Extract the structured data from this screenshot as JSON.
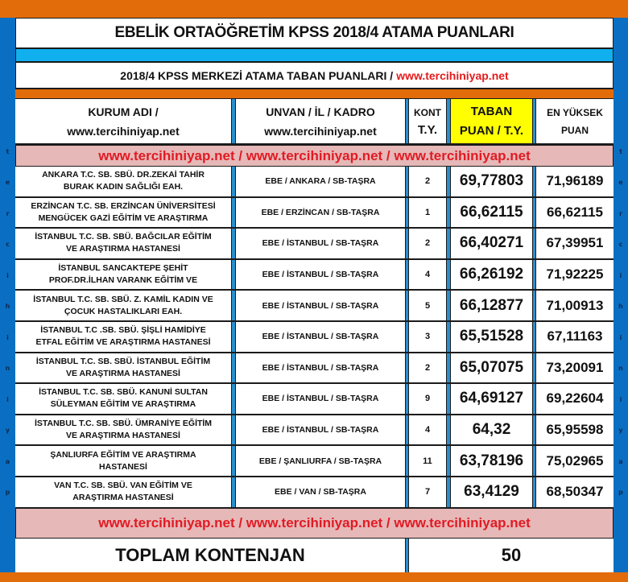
{
  "title": "EBELİK ORTAÖĞRETİM KPSS 2018/4 ATAMA PUANLARI",
  "subtitle": {
    "text": "2018/4 KPSS MERKEZİ ATAMA TABAN PUANLARI / ",
    "link": "www.tercihiniyap.net"
  },
  "colors": {
    "orange": "#e36c0a",
    "blue_side": "#0a6fc2",
    "cyan_bar": "#10b0ee",
    "pink_band": "#e6b8b8",
    "red_text": "#e01b24",
    "highlight_yellow": "#ffff00"
  },
  "headers": {
    "kurum_line1": "KURUM ADI /",
    "kurum_line2": "www.tercihiniyap.net",
    "unvan_line1": "UNVAN / İL / KADRO",
    "unvan_line2": "www.tercihiniyap.net",
    "kont_line1": "KONT",
    "kont_line2": "T.Y.",
    "taban_line1": "TABAN",
    "taban_line2": "PUAN / T.Y.",
    "enyuksek_line1": "EN YÜKSEK",
    "enyuksek_line2": "PUAN"
  },
  "watermark_band": "www.tercihiniyap.net / www.tercihiniyap.net / www.tercihiniyap.net",
  "side_letters": [
    "t",
    "e",
    "r",
    "c",
    "i",
    "h",
    "i",
    "n",
    "i",
    "y",
    "a",
    "p"
  ],
  "rows": [
    {
      "kurum_1": "ANKARA T.C. SB. SBÜ. DR.ZEKAİ TAHİR",
      "kurum_2": "BURAK KADIN SAĞLIĞI EAH.",
      "unvan": "EBE / ANKARA / SB-TAŞRA",
      "kont": "2",
      "taban": "69,77803",
      "en_yuksek": "71,96189"
    },
    {
      "kurum_1": "ERZİNCAN T.C. SB. ERZİNCAN ÜNİVERSİTESİ",
      "kurum_2": "MENGÜCEK GAZİ EĞİTİM VE ARAŞTIRMA",
      "unvan": "EBE / ERZİNCAN / SB-TAŞRA",
      "kont": "1",
      "taban": "66,62115",
      "en_yuksek": "66,62115"
    },
    {
      "kurum_1": "İSTANBUL T.C. SB. SBÜ. BAĞCILAR EĞİTİM",
      "kurum_2": "VE ARAŞTIRMA HASTANESİ",
      "unvan": "EBE / İSTANBUL / SB-TAŞRA",
      "kont": "2",
      "taban": "66,40271",
      "en_yuksek": "67,39951"
    },
    {
      "kurum_1": "İSTANBUL SANCAKTEPE ŞEHİT",
      "kurum_2": "PROF.DR.İLHAN VARANK EĞİTİM VE",
      "unvan": "EBE / İSTANBUL / SB-TAŞRA",
      "kont": "4",
      "taban": "66,26192",
      "en_yuksek": "71,92225"
    },
    {
      "kurum_1": "İSTANBUL T.C. SB. SBÜ. Z. KAMİL KADIN VE",
      "kurum_2": "ÇOCUK HASTALIKLARI EAH.",
      "unvan": "EBE / İSTANBUL / SB-TAŞRA",
      "kont": "5",
      "taban": "66,12877",
      "en_yuksek": "71,00913"
    },
    {
      "kurum_1": "İSTANBUL T.C .SB. SBÜ. ŞİŞLİ HAMİDİYE",
      "kurum_2": "ETFAL EĞİTİM VE ARAŞTIRMA HASTANESİ",
      "unvan": "EBE / İSTANBUL / SB-TAŞRA",
      "kont": "3",
      "taban": "65,51528",
      "en_yuksek": "67,11163"
    },
    {
      "kurum_1": "İSTANBUL T.C. SB. SBÜ. İSTANBUL EĞİTİM",
      "kurum_2": "VE ARAŞTIRMA HASTANESİ",
      "unvan": "EBE / İSTANBUL / SB-TAŞRA",
      "kont": "2",
      "taban": "65,07075",
      "en_yuksek": "73,20091"
    },
    {
      "kurum_1": "İSTANBUL T.C. SB. SBÜ. KANUNİ SULTAN",
      "kurum_2": "SÜLEYMAN EĞİTİM VE ARAŞTIRMA",
      "unvan": "EBE / İSTANBUL / SB-TAŞRA",
      "kont": "9",
      "taban": "64,69127",
      "en_yuksek": "69,22604"
    },
    {
      "kurum_1": "İSTANBUL T.C. SB. SBÜ. ÜMRANİYE EĞİTİM",
      "kurum_2": "VE ARAŞTIRMA HASTANESİ",
      "unvan": "EBE / İSTANBUL / SB-TAŞRA",
      "kont": "4",
      "taban": "64,32",
      "en_yuksek": "65,95598"
    },
    {
      "kurum_1": "ŞANLIURFA EĞİTİM VE ARAŞTIRMA",
      "kurum_2": "HASTANESİ",
      "unvan": "EBE / ŞANLIURFA / SB-TAŞRA",
      "kont": "11",
      "taban": "63,78196",
      "en_yuksek": "75,02965"
    },
    {
      "kurum_1": "VAN T.C. SB. SBÜ. VAN EĞİTİM VE",
      "kurum_2": "ARAŞTIRMA HASTANESİ",
      "unvan": "EBE / VAN / SB-TAŞRA",
      "kont": "7",
      "taban": "63,4129",
      "en_yuksek": "68,50347"
    }
  ],
  "total": {
    "label": "TOPLAM KONTENJAN",
    "value": "50"
  }
}
